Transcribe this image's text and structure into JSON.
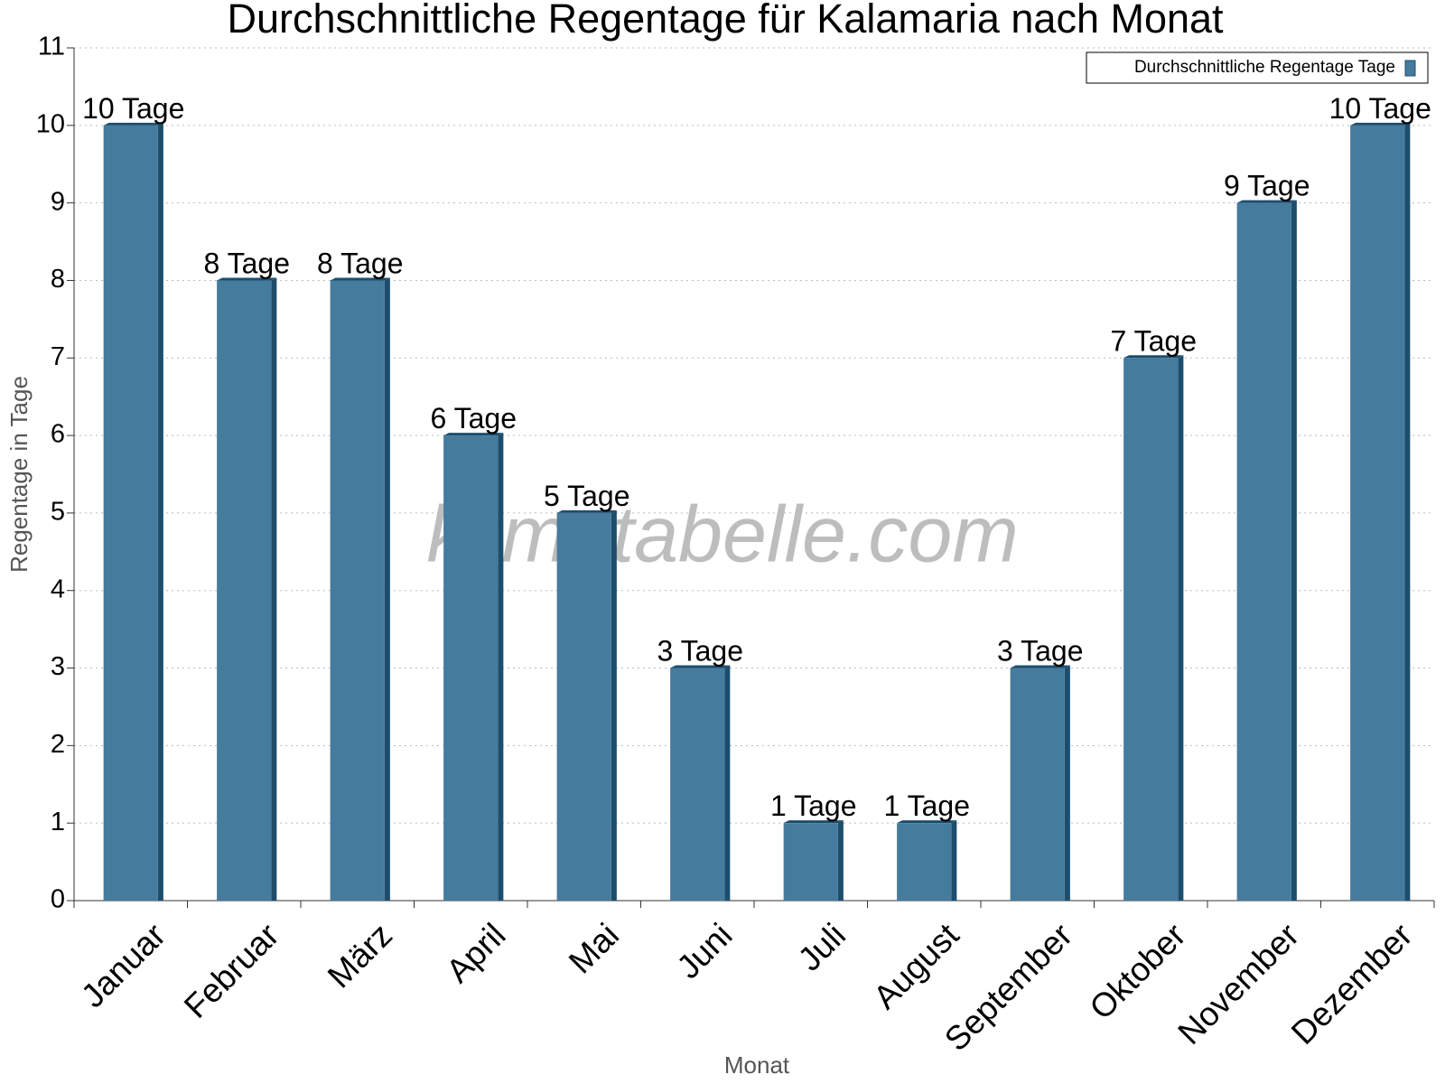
{
  "chart_data": {
    "type": "bar",
    "title": "Durchschnittliche Regentage für Kalamaria nach Monat",
    "x_label": "Monat",
    "y_label": "Regentage in Tage",
    "watermark": "klimatabelle.com",
    "categories": [
      "Januar",
      "Februar",
      "März",
      "April",
      "Mai",
      "Juni",
      "Juli",
      "August",
      "September",
      "Oktober",
      "November",
      "Dezember"
    ],
    "series": [
      {
        "name": "Durchschnittliche Regentage Tage",
        "color": "#457b9d",
        "values": [
          10,
          8,
          8,
          6,
          5,
          3,
          1,
          1,
          3,
          7,
          9,
          10
        ],
        "value_labels": [
          "10 Tage",
          "8 Tage",
          "8 Tage",
          "6 Tage",
          "5 Tage",
          "3 Tage",
          "1 Tage",
          "1 Tage",
          "3 Tage",
          "7 Tage",
          "9 Tage",
          "10 Tage"
        ]
      }
    ],
    "ylim": [
      0,
      11
    ],
    "yticks": [
      0,
      1,
      2,
      3,
      4,
      5,
      6,
      7,
      8,
      9,
      10,
      11
    ],
    "grid": true,
    "legend": "upper right"
  }
}
